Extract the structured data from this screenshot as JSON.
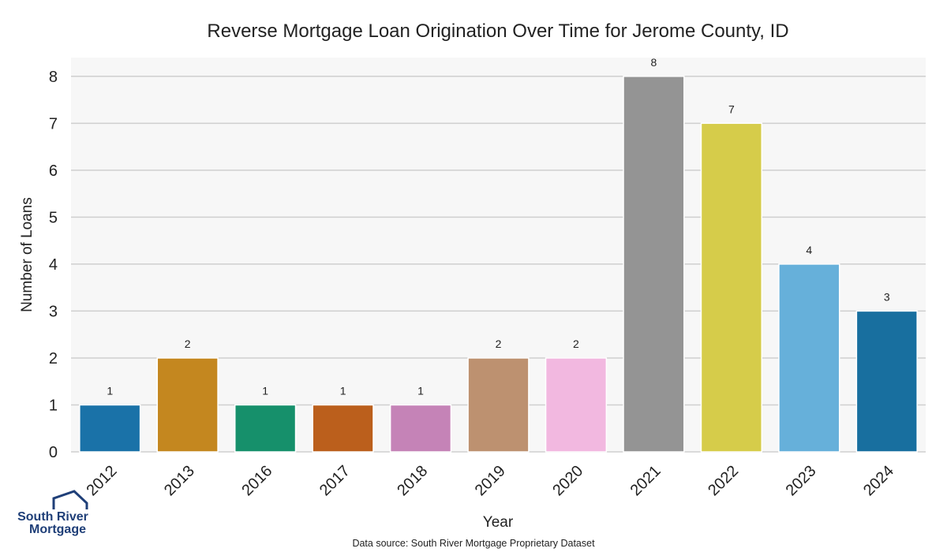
{
  "chart_data": {
    "type": "bar",
    "title": "Reverse Mortgage Loan Origination Over Time for Jerome County, ID",
    "xlabel": "Year",
    "ylabel": "Number of Loans",
    "categories": [
      "2012",
      "2013",
      "2016",
      "2017",
      "2018",
      "2019",
      "2020",
      "2021",
      "2022",
      "2023",
      "2024"
    ],
    "values": [
      1,
      2,
      1,
      1,
      1,
      2,
      2,
      8,
      7,
      4,
      3
    ],
    "colors": [
      "#1a72a8",
      "#c4871f",
      "#16906b",
      "#bb5f1c",
      "#c583b7",
      "#bd9170",
      "#f2b8e0",
      "#949494",
      "#d6cc4a",
      "#66b0da",
      "#186f9f"
    ],
    "ylim": [
      0,
      8.4
    ],
    "yticks": [
      0,
      1,
      2,
      3,
      4,
      5,
      6,
      7,
      8
    ],
    "grid": true,
    "background": "#f7f7f7"
  },
  "footer": {
    "source": "Data source: South River Mortgage Proprietary Dataset"
  },
  "logo": {
    "line1": "South River",
    "line2": "Mortgage",
    "color": "#1f3f78"
  }
}
